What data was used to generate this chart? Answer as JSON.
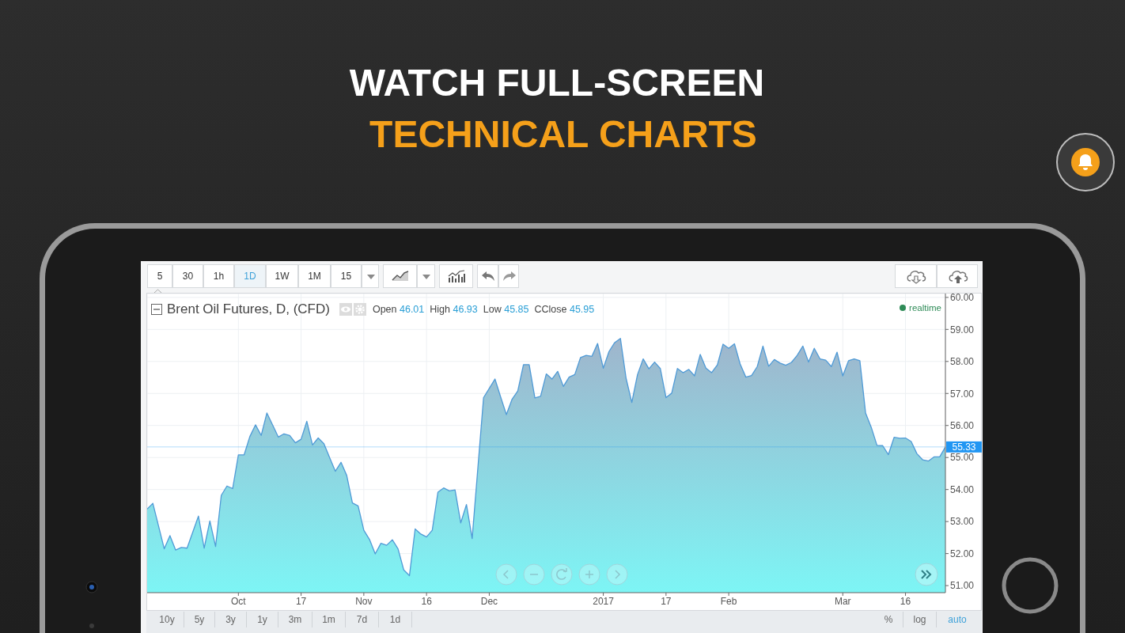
{
  "chart_data": {
    "type": "area",
    "title": "WATCH FULL-SCREEN",
    "subtitle": "TECHNICAL CHARTS",
    "categories": [
      null,
      null,
      null,
      null,
      null,
      null,
      null,
      null,
      null,
      null,
      null,
      null,
      null,
      null,
      null,
      null,
      "Oct",
      null,
      null,
      null,
      null,
      null,
      null,
      null,
      null,
      null,
      null,
      "17",
      null,
      null,
      null,
      null,
      null,
      null,
      null,
      null,
      null,
      null,
      "Nov",
      null,
      null,
      null,
      null,
      null,
      null,
      null,
      null,
      null,
      null,
      "16",
      null,
      null,
      null,
      null,
      null,
      null,
      null,
      null,
      null,
      null,
      "Dec",
      null,
      null,
      null,
      null,
      null,
      null,
      null,
      null,
      null,
      null,
      null,
      null,
      null,
      null,
      null,
      null,
      null,
      null,
      null,
      "2017",
      null,
      null,
      null,
      null,
      null,
      null,
      null,
      null,
      null,
      null,
      "17",
      null,
      null,
      null,
      null,
      null,
      null,
      null,
      null,
      null,
      null,
      "Feb",
      null,
      null,
      null,
      null,
      null,
      null,
      null,
      null,
      null,
      null,
      null,
      null,
      null,
      null,
      null,
      null,
      null,
      null,
      null,
      "Mar",
      null,
      null,
      null,
      null,
      null,
      null,
      null,
      null,
      null,
      null,
      "16",
      null,
      null,
      null,
      null,
      null,
      null,
      null
    ],
    "series": [
      {
        "color": "#4f9ad6",
        "values": [
          53.39,
          53.57,
          52.86,
          52.15,
          52.56,
          52.11,
          52.19,
          52.17,
          52.67,
          53.17,
          52.17,
          53.02,
          52.22,
          53.82,
          54.11,
          54.03,
          55.08,
          55.08,
          55.65,
          56.02,
          55.69,
          56.39,
          56.02,
          55.64,
          55.74,
          55.69,
          55.46,
          55.57,
          56.13,
          55.39,
          55.61,
          55.43,
          55.0,
          54.57,
          54.85,
          54.44,
          53.58,
          53.49,
          52.73,
          52.44,
          51.99,
          52.32,
          52.26,
          52.43,
          52.15,
          51.49,
          51.31,
          52.77,
          52.61,
          52.52,
          52.73,
          53.92,
          54.05,
          53.96,
          53.99,
          52.96,
          53.53,
          52.47,
          54.67,
          56.87,
          57.16,
          57.45,
          56.89,
          56.34,
          56.82,
          57.08,
          57.9,
          57.9,
          56.86,
          56.91,
          57.61,
          57.45,
          57.69,
          57.22,
          57.51,
          57.59,
          58.12,
          58.19,
          58.16,
          58.56,
          57.79,
          58.31,
          58.59,
          58.72,
          57.47,
          56.72,
          57.59,
          58.08,
          57.77,
          57.98,
          57.78,
          56.87,
          57.01,
          57.78,
          57.65,
          57.75,
          57.55,
          58.22,
          57.79,
          57.65,
          57.89,
          58.54,
          58.41,
          58.55,
          57.92,
          57.51,
          57.56,
          57.84,
          58.48,
          57.85,
          58.06,
          57.95,
          57.88,
          57.97,
          58.19,
          58.48,
          57.98,
          58.41,
          58.08,
          58.04,
          57.84,
          58.29,
          57.55,
          58.02,
          58.08,
          58.02,
          56.39,
          55.94,
          55.38,
          55.37,
          55.09,
          55.63,
          55.6,
          55.61,
          55.5,
          55.12,
          54.93,
          54.89,
          55.02,
          55.02,
          55.33
        ]
      }
    ],
    "ylim": [
      50.78,
      60.12
    ],
    "yticks": [
      {
        "value": 51,
        "label": "51.00"
      },
      {
        "value": 52,
        "label": "52.00"
      },
      {
        "value": 53,
        "label": "53.00"
      },
      {
        "value": 54,
        "label": "54.00"
      },
      {
        "value": 55,
        "label": "55.00"
      },
      {
        "value": 56,
        "label": "56.00"
      },
      {
        "value": 57,
        "label": "57.00"
      },
      {
        "value": 58,
        "label": "58.00"
      },
      {
        "value": 59,
        "label": "59.00"
      },
      {
        "value": 60,
        "label": "60.00"
      }
    ],
    "grid": true,
    "ref_lines": [
      {
        "axis": "y",
        "value": 55.33,
        "label": "55.33",
        "color": "#2196f3"
      }
    ],
    "annotations": [
      "5",
      "30",
      "1h",
      "1D",
      "1W",
      "1M",
      "15",
      "Brent Oil Futures, D, (CFD)",
      "Open 46.01",
      "High 46.93",
      "Low 45.85",
      "CClose 45.95",
      "realtime",
      "10y",
      "5y",
      "3y",
      "1y",
      "3m",
      "1m",
      "7d",
      "1d",
      "%",
      "log",
      "auto"
    ]
  }
}
